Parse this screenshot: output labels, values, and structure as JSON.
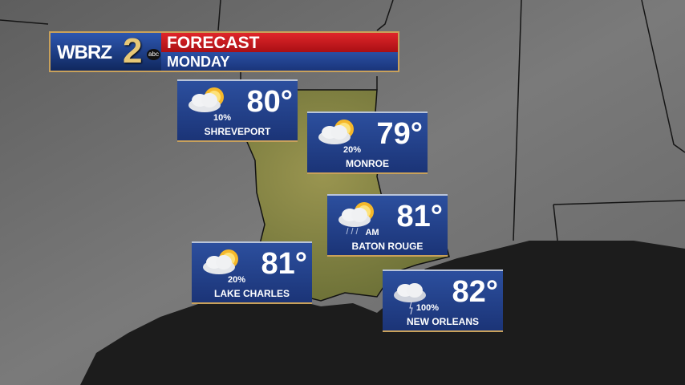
{
  "header": {
    "station": "WBRZ",
    "channel": "2",
    "network": "abc",
    "title": "FORECAST",
    "day": "MONDAY"
  },
  "colors": {
    "header_red": "#c4161c",
    "panel_blue": "#23438c",
    "trim_gold": "#c9a15a",
    "land": "#707070",
    "louisiana": "#8a8a45",
    "gulf": "#1e1e1e"
  },
  "cards": [
    {
      "city": "SHREVEPORT",
      "temp": "80°",
      "precip": "10%",
      "icon": "partly-cloudy-icon"
    },
    {
      "city": "MONROE",
      "temp": "79°",
      "precip": "20%",
      "icon": "partly-cloudy-icon"
    },
    {
      "city": "BATON ROUGE",
      "temp": "81°",
      "precip": "AM",
      "icon": "partly-cloudy-showers-icon"
    },
    {
      "city": "LAKE CHARLES",
      "temp": "81°",
      "precip": "20%",
      "icon": "partly-cloudy-icon"
    },
    {
      "city": "NEW ORLEANS",
      "temp": "82°",
      "precip": "100%",
      "icon": "thunderstorm-icon"
    }
  ]
}
